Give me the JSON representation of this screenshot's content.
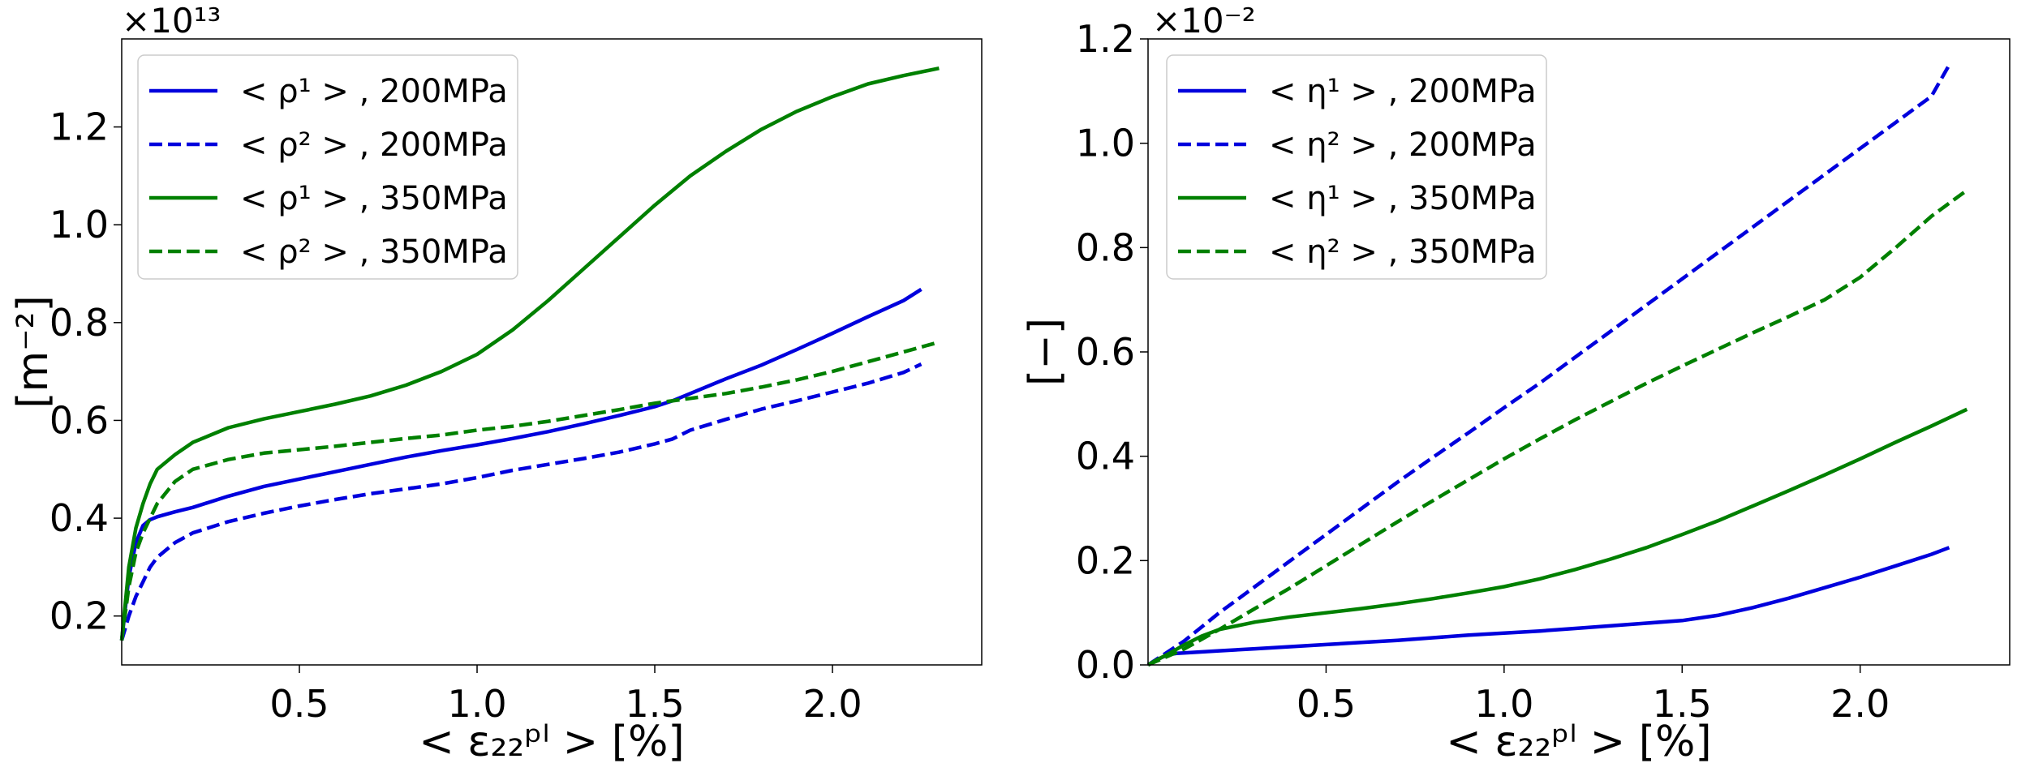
{
  "chart_data": [
    {
      "type": "line",
      "id": "left",
      "title": "",
      "xlabel": "< ε₂₂ᵖˡ >  [%]",
      "ylabel": "[m⁻²]",
      "offset_label": "×10¹³",
      "xlim": [
        0,
        2.42
      ],
      "ylim": [
        0.1,
        1.38
      ],
      "xticks": [
        0.5,
        1.0,
        1.5,
        2.0
      ],
      "xtick_labels": [
        "0.5",
        "1.0",
        "1.5",
        "2.0"
      ],
      "yticks": [
        0.2,
        0.4,
        0.6,
        0.8,
        1.0,
        1.2
      ],
      "ytick_labels": [
        "0.2",
        "0.4",
        "0.6",
        "0.8",
        "1.0",
        "1.2"
      ],
      "grid": false,
      "legend_position": "top-left",
      "series": [
        {
          "name": "< ρ¹ > ,  200MPa",
          "color": "#0000dd",
          "dash": "solid",
          "x": [
            0,
            0.02,
            0.04,
            0.06,
            0.08,
            0.1,
            0.15,
            0.2,
            0.3,
            0.4,
            0.5,
            0.6,
            0.7,
            0.8,
            0.9,
            1.0,
            1.1,
            1.2,
            1.3,
            1.4,
            1.5,
            1.55,
            1.6,
            1.7,
            1.8,
            1.9,
            2.0,
            2.1,
            2.2,
            2.25
          ],
          "y": [
            0.15,
            0.28,
            0.35,
            0.385,
            0.397,
            0.403,
            0.413,
            0.422,
            0.445,
            0.465,
            0.48,
            0.495,
            0.51,
            0.525,
            0.538,
            0.55,
            0.563,
            0.577,
            0.593,
            0.61,
            0.628,
            0.64,
            0.655,
            0.685,
            0.713,
            0.745,
            0.778,
            0.812,
            0.845,
            0.868
          ]
        },
        {
          "name": "< ρ² > ,  200MPa",
          "color": "#0000dd",
          "dash": "dashed",
          "x": [
            0,
            0.02,
            0.04,
            0.06,
            0.08,
            0.1,
            0.15,
            0.2,
            0.3,
            0.4,
            0.5,
            0.6,
            0.7,
            0.8,
            0.9,
            1.0,
            1.1,
            1.2,
            1.3,
            1.4,
            1.5,
            1.55,
            1.6,
            1.7,
            1.8,
            1.9,
            2.0,
            2.1,
            2.2,
            2.25
          ],
          "y": [
            0.15,
            0.2,
            0.24,
            0.27,
            0.3,
            0.32,
            0.35,
            0.37,
            0.393,
            0.41,
            0.425,
            0.438,
            0.45,
            0.46,
            0.47,
            0.483,
            0.498,
            0.51,
            0.522,
            0.535,
            0.552,
            0.562,
            0.58,
            0.602,
            0.623,
            0.64,
            0.658,
            0.676,
            0.698,
            0.715
          ]
        },
        {
          "name": "< ρ¹ > ,  350MPa",
          "color": "#008000",
          "dash": "solid",
          "x": [
            0,
            0.02,
            0.04,
            0.06,
            0.08,
            0.1,
            0.15,
            0.2,
            0.3,
            0.4,
            0.5,
            0.6,
            0.7,
            0.8,
            0.9,
            1.0,
            1.1,
            1.2,
            1.3,
            1.4,
            1.5,
            1.6,
            1.7,
            1.8,
            1.9,
            2.0,
            2.1,
            2.2,
            2.3
          ],
          "y": [
            0.15,
            0.3,
            0.38,
            0.43,
            0.47,
            0.5,
            0.53,
            0.555,
            0.585,
            0.603,
            0.618,
            0.633,
            0.65,
            0.672,
            0.7,
            0.735,
            0.785,
            0.845,
            0.91,
            0.975,
            1.04,
            1.1,
            1.15,
            1.195,
            1.232,
            1.262,
            1.288,
            1.305,
            1.32
          ]
        },
        {
          "name": "< ρ² > ,  350MPa",
          "color": "#008000",
          "dash": "dashed",
          "x": [
            0,
            0.02,
            0.04,
            0.06,
            0.08,
            0.1,
            0.15,
            0.2,
            0.3,
            0.4,
            0.5,
            0.6,
            0.7,
            0.8,
            0.9,
            1.0,
            1.1,
            1.2,
            1.3,
            1.4,
            1.5,
            1.6,
            1.7,
            1.8,
            1.9,
            2.0,
            2.1,
            2.2,
            2.3
          ],
          "y": [
            0.15,
            0.26,
            0.33,
            0.37,
            0.4,
            0.43,
            0.475,
            0.5,
            0.52,
            0.533,
            0.54,
            0.547,
            0.555,
            0.563,
            0.57,
            0.58,
            0.588,
            0.598,
            0.61,
            0.622,
            0.635,
            0.645,
            0.655,
            0.668,
            0.683,
            0.7,
            0.72,
            0.74,
            0.76
          ]
        }
      ]
    },
    {
      "type": "line",
      "id": "right",
      "title": "",
      "xlabel": "< ε₂₂ᵖˡ >  [%]",
      "ylabel": "[−]",
      "offset_label": "×10⁻²",
      "xlim": [
        0,
        2.42
      ],
      "ylim": [
        0,
        1.2
      ],
      "xticks": [
        0.5,
        1.0,
        1.5,
        2.0
      ],
      "xtick_labels": [
        "0.5",
        "1.0",
        "1.5",
        "2.0"
      ],
      "yticks": [
        0.0,
        0.2,
        0.4,
        0.6,
        0.8,
        1.0,
        1.2
      ],
      "ytick_labels": [
        "0.0",
        "0.2",
        "0.4",
        "0.6",
        "0.8",
        "1.0",
        "1.2"
      ],
      "grid": false,
      "legend_position": "top-left",
      "series": [
        {
          "name": "< η¹ > ,  200MPa",
          "color": "#0000dd",
          "dash": "solid",
          "x": [
            0,
            0.02,
            0.04,
            0.06,
            0.08,
            0.1,
            0.2,
            0.3,
            0.4,
            0.5,
            0.6,
            0.7,
            0.8,
            0.9,
            1.0,
            1.1,
            1.2,
            1.3,
            1.4,
            1.5,
            1.6,
            1.7,
            1.8,
            1.9,
            2.0,
            2.1,
            2.2,
            2.25
          ],
          "y": [
            0,
            0.008,
            0.015,
            0.02,
            0.022,
            0.023,
            0.027,
            0.031,
            0.035,
            0.039,
            0.043,
            0.047,
            0.052,
            0.057,
            0.061,
            0.065,
            0.07,
            0.075,
            0.08,
            0.085,
            0.095,
            0.11,
            0.128,
            0.148,
            0.168,
            0.19,
            0.212,
            0.225
          ]
        },
        {
          "name": "< η² > ,  200MPa",
          "color": "#0000dd",
          "dash": "dashed",
          "x": [
            0,
            0.1,
            0.2,
            0.3,
            0.4,
            0.5,
            0.6,
            0.7,
            0.8,
            0.9,
            1.0,
            1.1,
            1.2,
            1.3,
            1.4,
            1.5,
            1.6,
            1.7,
            1.8,
            1.9,
            2.0,
            2.1,
            2.2,
            2.25
          ],
          "y": [
            0,
            0.045,
            0.1,
            0.15,
            0.2,
            0.25,
            0.3,
            0.35,
            0.398,
            0.445,
            0.493,
            0.54,
            0.59,
            0.64,
            0.69,
            0.74,
            0.79,
            0.84,
            0.89,
            0.94,
            0.99,
            1.04,
            1.09,
            1.15
          ]
        },
        {
          "name": "< η¹ > ,  350MPa",
          "color": "#008000",
          "dash": "solid",
          "x": [
            0,
            0.02,
            0.04,
            0.06,
            0.08,
            0.1,
            0.15,
            0.2,
            0.3,
            0.4,
            0.5,
            0.6,
            0.7,
            0.8,
            0.9,
            1.0,
            1.1,
            1.2,
            1.3,
            1.4,
            1.5,
            1.6,
            1.7,
            1.8,
            1.9,
            2.0,
            2.1,
            2.2,
            2.3
          ],
          "y": [
            0,
            0.008,
            0.015,
            0.022,
            0.03,
            0.038,
            0.055,
            0.068,
            0.082,
            0.092,
            0.1,
            0.108,
            0.117,
            0.127,
            0.138,
            0.15,
            0.165,
            0.183,
            0.203,
            0.225,
            0.25,
            0.276,
            0.305,
            0.334,
            0.364,
            0.395,
            0.427,
            0.458,
            0.49
          ]
        },
        {
          "name": "< η² > ,  350MPa",
          "color": "#008000",
          "dash": "dashed",
          "x": [
            0,
            0.1,
            0.2,
            0.3,
            0.4,
            0.5,
            0.6,
            0.7,
            0.8,
            0.9,
            1.0,
            1.1,
            1.2,
            1.3,
            1.4,
            1.5,
            1.6,
            1.7,
            1.8,
            1.9,
            2.0,
            2.1,
            2.2,
            2.3
          ],
          "y": [
            0,
            0.03,
            0.068,
            0.108,
            0.148,
            0.19,
            0.232,
            0.274,
            0.315,
            0.355,
            0.395,
            0.433,
            0.47,
            0.505,
            0.54,
            0.573,
            0.605,
            0.637,
            0.668,
            0.7,
            0.743,
            0.8,
            0.86,
            0.91
          ]
        }
      ]
    }
  ]
}
